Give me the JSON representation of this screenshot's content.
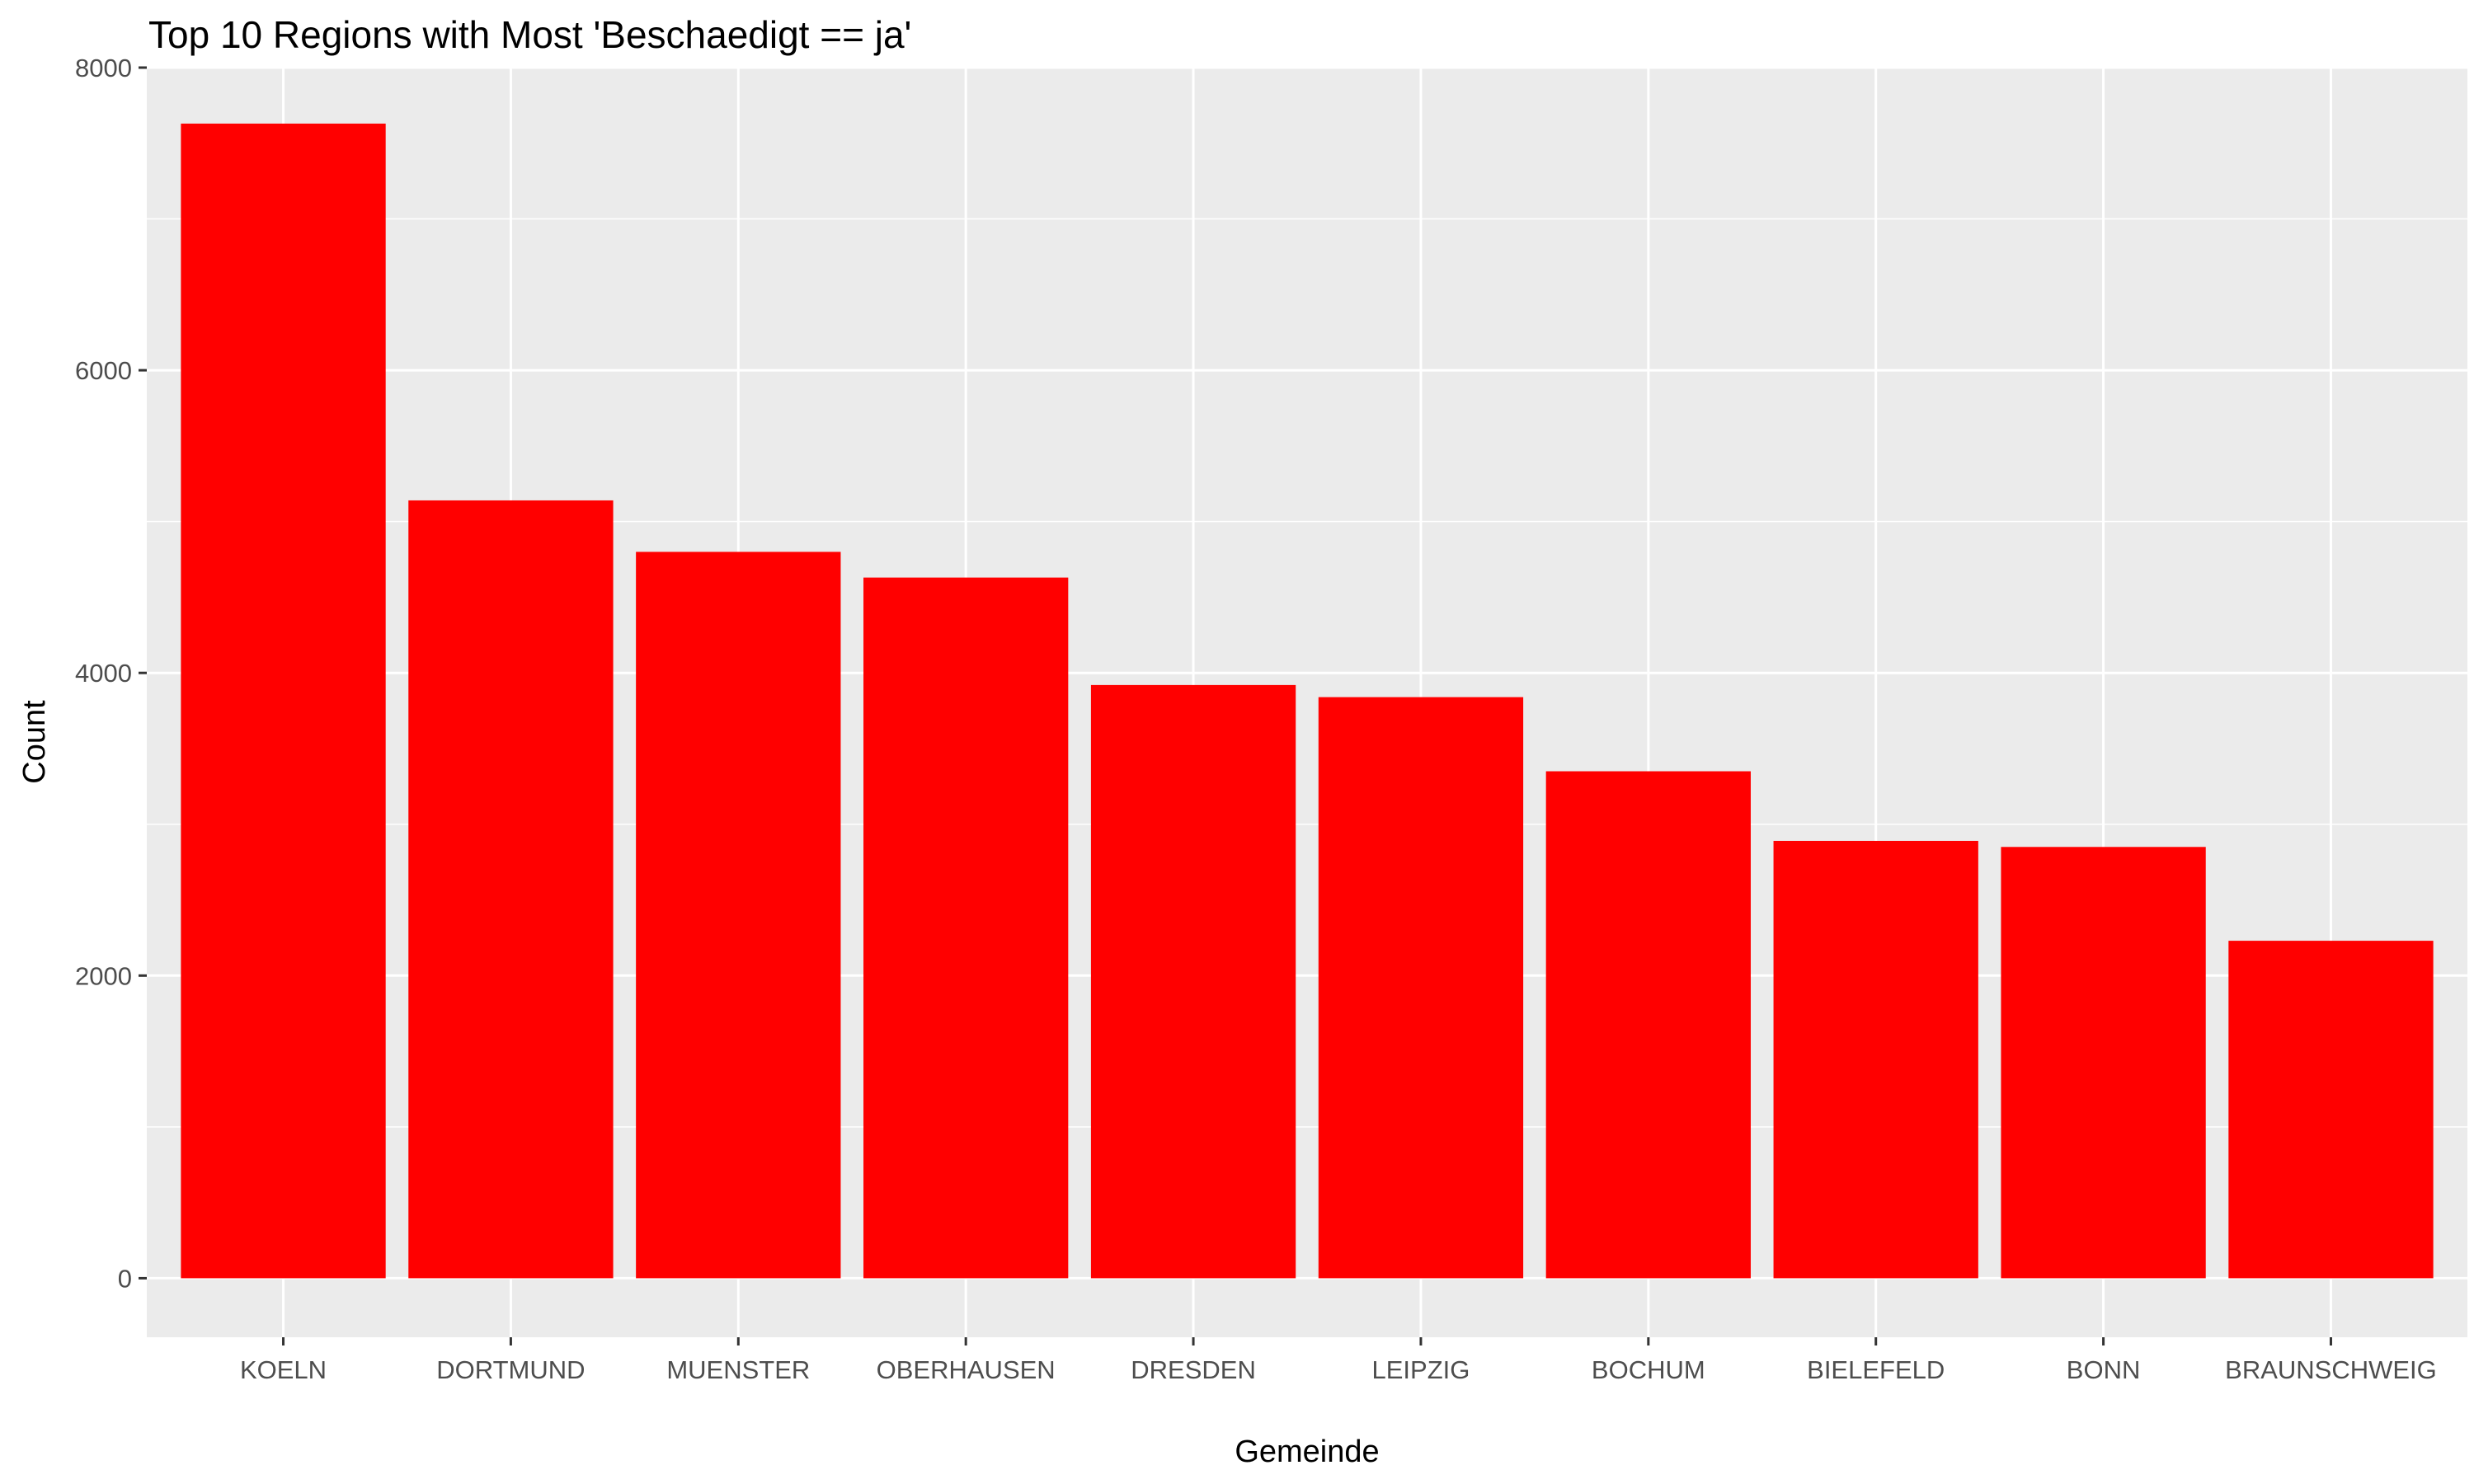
{
  "chart_data": {
    "type": "bar",
    "title": "Top 10 Regions with Most 'Beschaedigt == ja'",
    "xlabel": "Gemeinde",
    "ylabel": "Count",
    "categories": [
      "KOELN",
      "DORTMUND",
      "MUENSTER",
      "OBERHAUSEN",
      "DRESDEN",
      "LEIPZIG",
      "BOCHUM",
      "BIELEFELD",
      "BONN",
      "BRAUNSCHWEIG"
    ],
    "values": [
      7630,
      5140,
      4800,
      4630,
      3920,
      3840,
      3350,
      2890,
      2850,
      2230
    ],
    "ylim": [
      -390,
      8000
    ],
    "yticks": [
      0,
      2000,
      4000,
      6000,
      8000
    ],
    "ytick_labels": [
      "0",
      "2000",
      "4000",
      "6000",
      "8000"
    ],
    "grid": true,
    "legend": "none",
    "colors": {
      "bar": "#FF0000",
      "panel": "#EBEBEB",
      "grid": "#FFFFFF",
      "tick": "#333333",
      "tick_label": "#4D4D4D",
      "text": "#000000"
    }
  }
}
